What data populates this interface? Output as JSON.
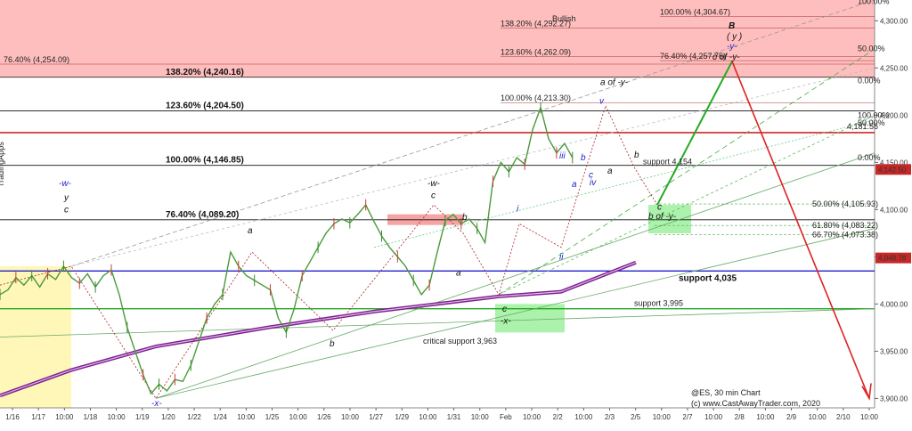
{
  "chart_data": {
    "type": "line",
    "title": "@ES, 30 min Chart",
    "copyright": "(c) www.CastAwayTrader.com, 2020",
    "x_ticks": [
      "1/16",
      "1/17",
      "10:00",
      "1/18",
      "10:00",
      "1/19",
      "1/20",
      "1/22",
      "1/24",
      "10:00",
      "1/25",
      "10:00",
      "1/26",
      "10:00",
      "1/27",
      "1/29",
      "10:00",
      "1/31",
      "10:00",
      "Feb",
      "10:00",
      "2/2",
      "10:00",
      "2/3",
      "2/5",
      "10:00",
      "2/7",
      "10:00",
      "2/8",
      "10:00",
      "2/9",
      "10:00",
      "2/10",
      "10:00"
    ],
    "y_ticks": [
      "4,300.00",
      "4,250.00",
      "4,200.00",
      "4,150.00",
      "4,100.00",
      "4,050.00",
      "4,000.00",
      "3,950.00",
      "3,900.00"
    ],
    "ylim": [
      3890,
      4322
    ],
    "price_series": [
      {
        "t": 0,
        "v": 4010
      },
      {
        "t": 2,
        "v": 4015
      },
      {
        "t": 4,
        "v": 4028
      },
      {
        "t": 6,
        "v": 4020
      },
      {
        "t": 8,
        "v": 4030
      },
      {
        "t": 10,
        "v": 4018
      },
      {
        "t": 12,
        "v": 4032
      },
      {
        "t": 14,
        "v": 4026
      },
      {
        "t": 16,
        "v": 4040
      },
      {
        "t": 18,
        "v": 4028
      },
      {
        "t": 20,
        "v": 4022
      },
      {
        "t": 22,
        "v": 4032
      },
      {
        "t": 24,
        "v": 4018
      },
      {
        "t": 26,
        "v": 4030
      },
      {
        "t": 28,
        "v": 4036
      },
      {
        "t": 30,
        "v": 4010
      },
      {
        "t": 32,
        "v": 3975
      },
      {
        "t": 34,
        "v": 3950
      },
      {
        "t": 36,
        "v": 3925
      },
      {
        "t": 38,
        "v": 3905
      },
      {
        "t": 40,
        "v": 3915
      },
      {
        "t": 42,
        "v": 3908
      },
      {
        "t": 44,
        "v": 3920
      },
      {
        "t": 46,
        "v": 3918
      },
      {
        "t": 48,
        "v": 3935
      },
      {
        "t": 50,
        "v": 3960
      },
      {
        "t": 52,
        "v": 3985
      },
      {
        "t": 54,
        "v": 4000
      },
      {
        "t": 56,
        "v": 4010
      },
      {
        "t": 58,
        "v": 4055
      },
      {
        "t": 60,
        "v": 4040
      },
      {
        "t": 62,
        "v": 4030
      },
      {
        "t": 64,
        "v": 4025
      },
      {
        "t": 66,
        "v": 4020
      },
      {
        "t": 68,
        "v": 4015
      },
      {
        "t": 70,
        "v": 3985
      },
      {
        "t": 72,
        "v": 3970
      },
      {
        "t": 74,
        "v": 3995
      },
      {
        "t": 76,
        "v": 4030
      },
      {
        "t": 78,
        "v": 4045
      },
      {
        "t": 80,
        "v": 4060
      },
      {
        "t": 82,
        "v": 4075
      },
      {
        "t": 84,
        "v": 4085
      },
      {
        "t": 86,
        "v": 4090
      },
      {
        "t": 88,
        "v": 4086
      },
      {
        "t": 90,
        "v": 4095
      },
      {
        "t": 92,
        "v": 4105
      },
      {
        "t": 94,
        "v": 4088
      },
      {
        "t": 96,
        "v": 4072
      },
      {
        "t": 98,
        "v": 4060
      },
      {
        "t": 100,
        "v": 4050
      },
      {
        "t": 102,
        "v": 4040
      },
      {
        "t": 104,
        "v": 4025
      },
      {
        "t": 106,
        "v": 4010
      },
      {
        "t": 108,
        "v": 4020
      },
      {
        "t": 110,
        "v": 4055
      },
      {
        "t": 112,
        "v": 4088
      },
      {
        "t": 114,
        "v": 4095
      },
      {
        "t": 116,
        "v": 4085
      },
      {
        "t": 118,
        "v": 4090
      },
      {
        "t": 120,
        "v": 4080
      },
      {
        "t": 122,
        "v": 4065
      },
      {
        "t": 124,
        "v": 4130
      },
      {
        "t": 126,
        "v": 4150
      },
      {
        "t": 128,
        "v": 4140
      },
      {
        "t": 130,
        "v": 4155
      },
      {
        "t": 132,
        "v": 4148
      },
      {
        "t": 134,
        "v": 4185
      },
      {
        "t": 136,
        "v": 4208
      },
      {
        "t": 138,
        "v": 4175
      },
      {
        "t": 140,
        "v": 4160
      },
      {
        "t": 142,
        "v": 4170
      },
      {
        "t": 144,
        "v": 4155
      }
    ],
    "horizontal_levels": [
      {
        "value": 4240.16,
        "label": "138.20% (4,240.16)",
        "color": "#111111"
      },
      {
        "value": 4204.5,
        "label": "123.60% (4,204.50)",
        "color": "#111111"
      },
      {
        "value": 4181.56,
        "label": "4,181.56",
        "color": "#cc0000"
      },
      {
        "value": 4146.85,
        "label": "100.00% (4,146.85)",
        "color": "#111111"
      },
      {
        "value": 4089.2,
        "label": "76.40% (4,089.20)",
        "color": "#111111"
      },
      {
        "value": 4035,
        "label": "support 4,035",
        "color": "#2222cc"
      },
      {
        "value": 3995,
        "label": "support 3,995",
        "color": "#22aa22"
      }
    ],
    "red_zone_labels": [
      "100.00% (4,304.67)",
      "138.20% (4,292.27)",
      "123.60% (4,262.09)",
      "76.40% (4,257.75)",
      "76.40% (4,254.09)",
      "100.00% (4,213.30)"
    ],
    "fib_green_labels": [
      "50.00% (4,105.93)",
      "61.80% (4,083.22)",
      "66.70% (4,073.38)"
    ],
    "small_pct_labels": [
      "100.00%",
      "50.00%",
      "0.00%",
      "100.00%",
      "50.00%",
      "0.00%"
    ],
    "bullish_label": "Bullish",
    "price_tags": [
      {
        "value": 4142.5,
        "label": "4,142.50"
      },
      {
        "value": 4048.78,
        "label": "4,048.78"
      }
    ],
    "wave_labels": {
      "w1": "-w-",
      "y1": "y",
      "c1": "c",
      "x1": "-x-",
      "a1": "a",
      "b1": "b",
      "w2": "-w-",
      "c2": "c",
      "b2": "b",
      "a2": "a",
      "c3": "c",
      "x2": "-x-",
      "i1": "i",
      "ii1": "ii",
      "iii1": "iii",
      "iv1": "iv",
      "v1": "v",
      "a3": "a",
      "b3": "b",
      "c4": "c",
      "a4": "a",
      "aofy": "a of -y-",
      "bofy": "b of -y-",
      "cofy": "c of -y-",
      "B": "B",
      "y_paren": "( y )",
      "y2": "-y-"
    },
    "annotations": {
      "support_4154": "support 4,154",
      "critical_support": "critical support 3,963",
      "side_label": "TradingApps"
    }
  }
}
